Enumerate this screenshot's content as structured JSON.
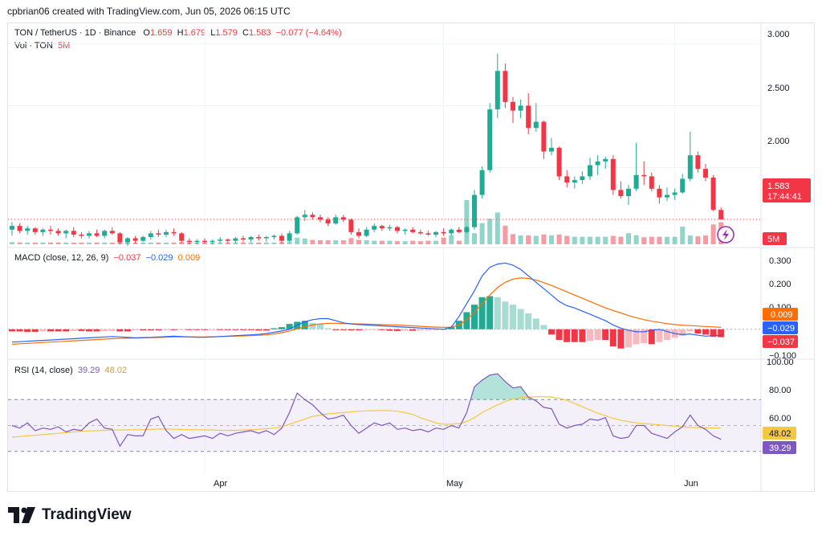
{
  "header": {
    "text": "cpbrian06 created with TradingView.com, Jun 05, 2026 06:15 UTC"
  },
  "legend": {
    "symbol": "TON / TetherUS · 1D · Binance",
    "o_label": "O",
    "o": "1.659",
    "h_label": "H",
    "h": "1.679",
    "l_label": "L",
    "l": "1.579",
    "c_label": "C",
    "c": "1.583",
    "change": "−0.077 (−4.64%)",
    "vol_label": "Vol · TON",
    "vol_value": "5M"
  },
  "macd_legend": {
    "label": "MACD (close, 12, 26, 9)",
    "hist": "−0.037",
    "macd": "−0.029",
    "signal": "0.009"
  },
  "rsi_legend": {
    "label": "RSI (14, close)",
    "rsi": "39.29",
    "ma": "48.02"
  },
  "price_axis": {
    "ticks": [
      "3.000",
      "2.500",
      "2.000"
    ],
    "last_price": "1.583",
    "countdown": "17:44:41",
    "vol_tag": "5M"
  },
  "macd_axis": {
    "ticks": [
      "0.300",
      "0.200",
      "0.100",
      "−0.100"
    ],
    "signal_tag": "0.009",
    "macd_tag": "−0.029",
    "hist_tag": "−0.037"
  },
  "rsi_axis": {
    "ticks": [
      "100.00",
      "80.00",
      "60.00"
    ],
    "ma_tag": "48.02",
    "rsi_tag": "39.29"
  },
  "time_axis": {
    "labels": [
      "Apr",
      "May",
      "Jun"
    ]
  },
  "logo": {
    "text": "TradingView"
  },
  "colors": {
    "up": "#22ab94",
    "down": "#f23645",
    "macd": "#2962ff",
    "signal": "#ff6d00",
    "rsi": "#7e57c2",
    "rsi_ma": "#f5c842"
  },
  "chart_data": {
    "type": "candlestick",
    "title": "TON / TetherUS · 1D · Binance",
    "price_range": [
      1.33,
      3.08
    ],
    "volume_unit": "M",
    "candles": [
      [
        1.5,
        1.56,
        1.45,
        1.53
      ],
      [
        1.53,
        1.55,
        1.47,
        1.49
      ],
      [
        1.49,
        1.53,
        1.46,
        1.51
      ],
      [
        1.51,
        1.52,
        1.46,
        1.48
      ],
      [
        1.48,
        1.51,
        1.45,
        1.5
      ],
      [
        1.5,
        1.53,
        1.46,
        1.49
      ],
      [
        1.49,
        1.51,
        1.45,
        1.47
      ],
      [
        1.47,
        1.5,
        1.43,
        1.49
      ],
      [
        1.49,
        1.52,
        1.44,
        1.46
      ],
      [
        1.46,
        1.48,
        1.43,
        1.45
      ],
      [
        1.45,
        1.49,
        1.43,
        1.47
      ],
      [
        1.47,
        1.5,
        1.44,
        1.45
      ],
      [
        1.45,
        1.5,
        1.43,
        1.49
      ],
      [
        1.49,
        1.52,
        1.46,
        1.47
      ],
      [
        1.47,
        1.48,
        1.38,
        1.4
      ],
      [
        1.4,
        1.44,
        1.37,
        1.43
      ],
      [
        1.43,
        1.45,
        1.39,
        1.41
      ],
      [
        1.41,
        1.45,
        1.4,
        1.44
      ],
      [
        1.44,
        1.49,
        1.42,
        1.47
      ],
      [
        1.47,
        1.5,
        1.44,
        1.46
      ],
      [
        1.46,
        1.5,
        1.44,
        1.48
      ],
      [
        1.48,
        1.51,
        1.45,
        1.47
      ],
      [
        1.47,
        1.48,
        1.39,
        1.41
      ],
      [
        1.41,
        1.43,
        1.38,
        1.4
      ],
      [
        1.4,
        1.42,
        1.38,
        1.41
      ],
      [
        1.41,
        1.43,
        1.39,
        1.4
      ],
      [
        1.4,
        1.42,
        1.38,
        1.41
      ],
      [
        1.41,
        1.44,
        1.39,
        1.42
      ],
      [
        1.42,
        1.43,
        1.39,
        1.41
      ],
      [
        1.41,
        1.44,
        1.39,
        1.43
      ],
      [
        1.43,
        1.45,
        1.4,
        1.42
      ],
      [
        1.42,
        1.45,
        1.4,
        1.44
      ],
      [
        1.44,
        1.46,
        1.41,
        1.43
      ],
      [
        1.43,
        1.45,
        1.4,
        1.44
      ],
      [
        1.44,
        1.46,
        1.42,
        1.45
      ],
      [
        1.45,
        1.47,
        1.39,
        1.41
      ],
      [
        1.41,
        1.49,
        1.4,
        1.47
      ],
      [
        1.47,
        1.61,
        1.46,
        1.6
      ],
      [
        1.6,
        1.66,
        1.57,
        1.62
      ],
      [
        1.62,
        1.64,
        1.58,
        1.6
      ],
      [
        1.6,
        1.62,
        1.56,
        1.58
      ],
      [
        1.58,
        1.6,
        1.53,
        1.55
      ],
      [
        1.55,
        1.62,
        1.54,
        1.6
      ],
      [
        1.6,
        1.62,
        1.56,
        1.58
      ],
      [
        1.58,
        1.59,
        1.46,
        1.48
      ],
      [
        1.48,
        1.51,
        1.43,
        1.45
      ],
      [
        1.45,
        1.52,
        1.44,
        1.5
      ],
      [
        1.5,
        1.55,
        1.48,
        1.53
      ],
      [
        1.53,
        1.54,
        1.49,
        1.51
      ],
      [
        1.51,
        1.54,
        1.49,
        1.52
      ],
      [
        1.52,
        1.53,
        1.47,
        1.49
      ],
      [
        1.49,
        1.51,
        1.46,
        1.5
      ],
      [
        1.5,
        1.52,
        1.47,
        1.48
      ],
      [
        1.48,
        1.5,
        1.46,
        1.47
      ],
      [
        1.47,
        1.49,
        1.45,
        1.46
      ],
      [
        1.46,
        1.49,
        1.44,
        1.48
      ],
      [
        1.48,
        1.51,
        1.45,
        1.47
      ],
      [
        1.47,
        1.51,
        1.45,
        1.5
      ],
      [
        1.5,
        1.52,
        1.47,
        1.48
      ],
      [
        1.48,
        1.53,
        1.47,
        1.52
      ],
      [
        1.52,
        1.82,
        1.5,
        1.78
      ],
      [
        1.78,
        2.01,
        1.75,
        1.98
      ],
      [
        1.98,
        2.52,
        1.96,
        2.47
      ],
      [
        2.47,
        2.92,
        2.4,
        2.78
      ],
      [
        2.78,
        2.84,
        2.48,
        2.53
      ],
      [
        2.53,
        2.57,
        2.36,
        2.46
      ],
      [
        2.46,
        2.55,
        2.4,
        2.5
      ],
      [
        2.5,
        2.6,
        2.27,
        2.32
      ],
      [
        2.32,
        2.52,
        2.29,
        2.37
      ],
      [
        2.37,
        2.38,
        2.07,
        2.13
      ],
      [
        2.13,
        2.24,
        2.1,
        2.16
      ],
      [
        2.16,
        2.17,
        1.9,
        1.93
      ],
      [
        1.93,
        1.98,
        1.84,
        1.88
      ],
      [
        1.88,
        1.93,
        1.83,
        1.9
      ],
      [
        1.9,
        1.97,
        1.87,
        1.93
      ],
      [
        1.93,
        2.08,
        1.9,
        2.02
      ],
      [
        2.02,
        2.1,
        1.94,
        2.05
      ],
      [
        2.05,
        2.09,
        1.99,
        2.07
      ],
      [
        2.07,
        2.1,
        1.78,
        1.82
      ],
      [
        1.82,
        1.89,
        1.75,
        1.77
      ],
      [
        1.77,
        1.86,
        1.7,
        1.83
      ],
      [
        1.83,
        2.2,
        1.81,
        1.94
      ],
      [
        1.94,
        2.05,
        1.86,
        1.93
      ],
      [
        1.93,
        1.96,
        1.81,
        1.83
      ],
      [
        1.83,
        1.86,
        1.71,
        1.76
      ],
      [
        1.76,
        1.84,
        1.73,
        1.78
      ],
      [
        1.78,
        1.83,
        1.74,
        1.8
      ],
      [
        1.8,
        1.95,
        1.79,
        1.91
      ],
      [
        1.91,
        2.29,
        1.89,
        2.1
      ],
      [
        2.1,
        2.13,
        1.96,
        1.99
      ],
      [
        1.99,
        2.03,
        1.89,
        1.92
      ],
      [
        1.92,
        1.94,
        1.65,
        1.66
      ],
      [
        1.659,
        1.679,
        1.579,
        1.583
      ]
    ],
    "volume": [
      0.5,
      0.4,
      0.4,
      0.4,
      0.4,
      0.4,
      0.4,
      0.4,
      0.4,
      0.4,
      0.4,
      0.4,
      0.4,
      0.4,
      0.6,
      0.5,
      0.4,
      0.4,
      0.4,
      0.4,
      0.4,
      0.4,
      0.5,
      0.4,
      0.4,
      0.4,
      0.4,
      0.4,
      0.4,
      0.4,
      0.4,
      0.4,
      0.4,
      0.4,
      0.4,
      0.5,
      0.6,
      1.5,
      1.3,
      1.0,
      0.9,
      0.9,
      0.9,
      0.9,
      1.4,
      1.0,
      0.9,
      0.8,
      0.8,
      0.8,
      0.7,
      0.7,
      0.8,
      0.7,
      0.8,
      0.8,
      1.5,
      2.0,
      0.8,
      10.0,
      2.5,
      4.8,
      5.8,
      7.2,
      4.2,
      2.3,
      2.0,
      2.0,
      1.9,
      2.2,
      2.0,
      2.2,
      1.9,
      1.7,
      1.7,
      1.7,
      1.7,
      1.7,
      1.9,
      1.7,
      2.5,
      2.0,
      1.6,
      1.7,
      1.7,
      1.7,
      1.7,
      4.0,
      2.0,
      1.8,
      2.0,
      4.5,
      5.0
    ],
    "macd_range": [
      -0.125,
      0.33
    ],
    "macd_hist": [
      -0.01,
      -0.01,
      -0.012,
      -0.012,
      -0.01,
      -0.01,
      -0.01,
      -0.01,
      -0.008,
      -0.008,
      -0.01,
      -0.01,
      -0.009,
      -0.008,
      -0.01,
      -0.01,
      -0.005,
      -0.005,
      -0.005,
      -0.005,
      -0.004,
      -0.004,
      -0.003,
      -0.003,
      -0.003,
      -0.003,
      -0.002,
      -0.002,
      -0.002,
      -0.002,
      -0.004,
      -0.004,
      -0.006,
      -0.006,
      0.005,
      0.01,
      0.025,
      0.035,
      0.04,
      0.03,
      0.025,
      0.005,
      -0.004,
      -0.004,
      -0.005,
      -0.005,
      -0.003,
      -0.002,
      -0.004,
      -0.007,
      -0.008,
      -0.007,
      -0.007,
      -0.006,
      -0.005,
      -0.002,
      0.002,
      0.01,
      0.04,
      0.08,
      0.115,
      0.15,
      0.155,
      0.15,
      0.13,
      0.115,
      0.095,
      0.075,
      0.05,
      0.02,
      -0.025,
      -0.05,
      -0.06,
      -0.06,
      -0.06,
      -0.055,
      -0.05,
      -0.05,
      -0.08,
      -0.09,
      -0.085,
      -0.07,
      -0.065,
      -0.07,
      -0.06,
      -0.05,
      -0.04,
      -0.03,
      -0.01,
      -0.02,
      -0.025,
      -0.035,
      -0.037
    ],
    "macd_line": [
      -0.06,
      -0.058,
      -0.056,
      -0.054,
      -0.052,
      -0.05,
      -0.048,
      -0.046,
      -0.044,
      -0.042,
      -0.04,
      -0.038,
      -0.036,
      -0.034,
      -0.036,
      -0.038,
      -0.04,
      -0.039,
      -0.038,
      -0.036,
      -0.034,
      -0.032,
      -0.034,
      -0.036,
      -0.037,
      -0.037,
      -0.036,
      -0.034,
      -0.032,
      -0.03,
      -0.028,
      -0.026,
      -0.024,
      -0.02,
      -0.014,
      -0.008,
      0.0,
      0.02,
      0.035,
      0.045,
      0.05,
      0.05,
      0.04,
      0.03,
      0.025,
      0.022,
      0.02,
      0.018,
      0.016,
      0.014,
      0.012,
      0.01,
      0.008,
      0.006,
      0.004,
      0.002,
      0.0,
      0.01,
      0.06,
      0.12,
      0.18,
      0.25,
      0.29,
      0.305,
      0.31,
      0.3,
      0.28,
      0.25,
      0.22,
      0.19,
      0.16,
      0.13,
      0.11,
      0.1,
      0.085,
      0.07,
      0.055,
      0.04,
      0.02,
      0.005,
      -0.005,
      -0.012,
      -0.012,
      -0.005,
      0.0,
      -0.01,
      -0.02,
      -0.025,
      -0.022,
      -0.028,
      -0.032,
      -0.03,
      -0.029
    ],
    "signal_line": [
      -0.07,
      -0.068,
      -0.066,
      -0.064,
      -0.062,
      -0.06,
      -0.058,
      -0.056,
      -0.054,
      -0.052,
      -0.05,
      -0.048,
      -0.046,
      -0.044,
      -0.043,
      -0.042,
      -0.041,
      -0.04,
      -0.039,
      -0.038,
      -0.037,
      -0.036,
      -0.036,
      -0.036,
      -0.036,
      -0.036,
      -0.035,
      -0.034,
      -0.033,
      -0.032,
      -0.031,
      -0.03,
      -0.028,
      -0.026,
      -0.022,
      -0.016,
      -0.008,
      0.002,
      0.012,
      0.02,
      0.025,
      0.028,
      0.028,
      0.027,
      0.026,
      0.025,
      0.024,
      0.023,
      0.022,
      0.021,
      0.02,
      0.018,
      0.016,
      0.014,
      0.012,
      0.01,
      0.009,
      0.01,
      0.02,
      0.045,
      0.08,
      0.12,
      0.16,
      0.195,
      0.22,
      0.235,
      0.24,
      0.238,
      0.23,
      0.218,
      0.205,
      0.19,
      0.175,
      0.16,
      0.145,
      0.13,
      0.115,
      0.1,
      0.088,
      0.076,
      0.064,
      0.054,
      0.045,
      0.038,
      0.032,
      0.026,
      0.022,
      0.019,
      0.017,
      0.015,
      0.013,
      0.011,
      0.009
    ],
    "rsi_range": [
      0,
      100
    ],
    "rsi_levels": [
      70,
      50,
      30
    ],
    "rsi": [
      50,
      48,
      52,
      46,
      48,
      47,
      49,
      45,
      47,
      46,
      52,
      55,
      48,
      47,
      34,
      43,
      42,
      42,
      55,
      57,
      46,
      40,
      43,
      40,
      41,
      42,
      40,
      44,
      42,
      44,
      45,
      46,
      44,
      46,
      43,
      48,
      60,
      75,
      70,
      66,
      60,
      55,
      56,
      58,
      50,
      44,
      48,
      52,
      50,
      52,
      47,
      48,
      46,
      47,
      45,
      48,
      47,
      50,
      48,
      60,
      80,
      85,
      89,
      90,
      84,
      79,
      80,
      72,
      69,
      64,
      63,
      51,
      48,
      50,
      51,
      55,
      54,
      56,
      42,
      40,
      41,
      50,
      50,
      44,
      42,
      40,
      45,
      49,
      58,
      50,
      47,
      42,
      39.29
    ],
    "rsi_ma": [
      41,
      41.5,
      42,
      42.5,
      43,
      43.5,
      44,
      44.5,
      45,
      45.5,
      45.8,
      46,
      46.2,
      46.4,
      46.5,
      46.6,
      46.7,
      46.8,
      47,
      47.2,
      47.2,
      47.1,
      46.9,
      46.8,
      46.7,
      46.6,
      46.5,
      46.3,
      46.2,
      46.2,
      46.5,
      46.8,
      47,
      47.5,
      48,
      49,
      51,
      53,
      55,
      57,
      58,
      59,
      59.5,
      60,
      60.5,
      61,
      61.3,
      61.5,
      61.6,
      61.5,
      61,
      60,
      58.5,
      56,
      54,
      52,
      51,
      51,
      51.5,
      53,
      56,
      60,
      63,
      66,
      68.5,
      70.5,
      71.5,
      72,
      72.3,
      72.3,
      72,
      71,
      69.5,
      67,
      64.5,
      62,
      59.5,
      57.5,
      55.5,
      54,
      53,
      52,
      51.5,
      51,
      50.5,
      50,
      49.5,
      49,
      48.5,
      48.3,
      48.2,
      48.1,
      48.02
    ],
    "x_labels": [
      "Apr",
      "May",
      "Jun"
    ],
    "x_label_index": [
      25,
      56,
      86
    ]
  }
}
